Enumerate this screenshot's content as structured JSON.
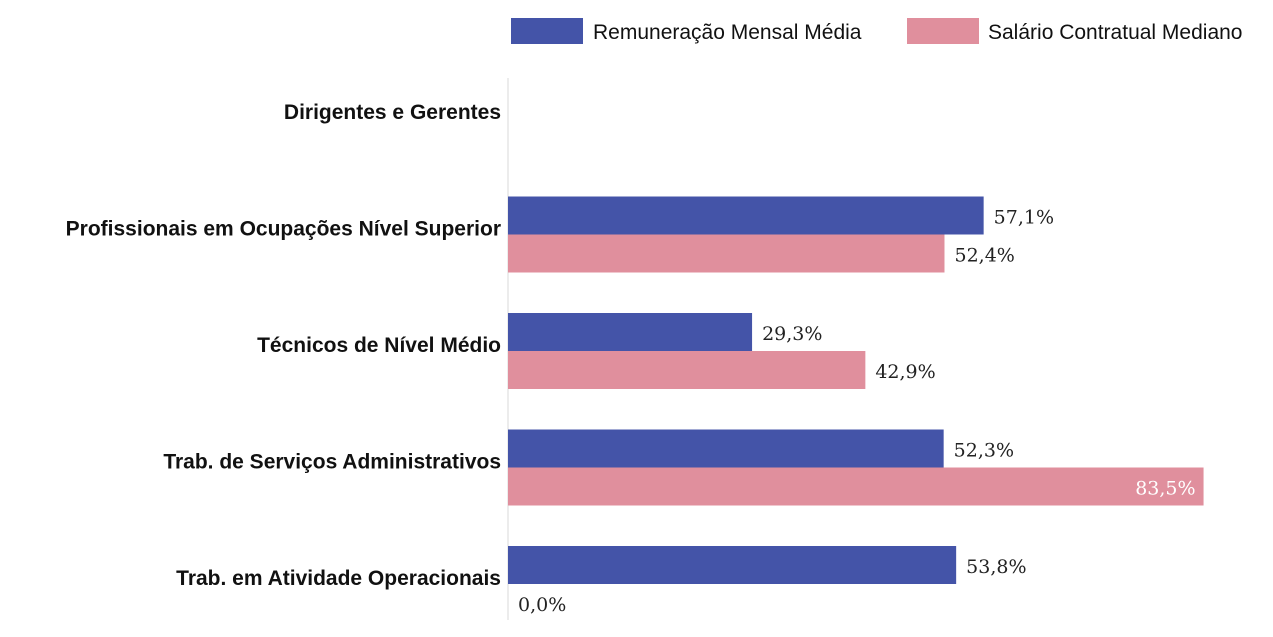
{
  "chart_data": {
    "type": "bar",
    "orientation": "horizontal",
    "categories": [
      "Dirigentes e Gerentes",
      "Profissionais em Ocupações Nível Superior",
      "Técnicos de Nível Médio",
      "Trab. de Serviços Administrativos",
      "Trab. em Atividade Operacionais"
    ],
    "series": [
      {
        "name": "Remuneração Mensal Média",
        "color": "#4454a8",
        "values": [
          null,
          57.1,
          29.3,
          52.3,
          53.8
        ],
        "labels": [
          "",
          "57,1%",
          "29,3%",
          "52,3%",
          "53,8%"
        ]
      },
      {
        "name": "Salário Contratual Mediano",
        "color": "#e08f9d",
        "values": [
          null,
          52.4,
          42.9,
          83.5,
          0.0
        ],
        "labels": [
          "",
          "52,4%",
          "42,9%",
          "83,5%",
          "0,0%"
        ]
      }
    ],
    "xlim": [
      0,
      100
    ],
    "grid": false,
    "legend_position": "top-right",
    "title": "",
    "xlabel": "",
    "ylabel": ""
  }
}
